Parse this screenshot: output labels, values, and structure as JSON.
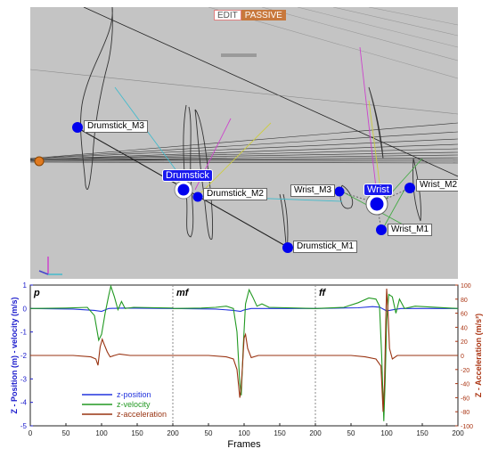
{
  "toolbar": {
    "edit_label": "EDIT",
    "passive_label": "PASSIVE"
  },
  "markers": {
    "drumstick_m3": "Drumstick_M3",
    "drumstick": "Drumstick",
    "drumstick_m2": "Drumstick_M2",
    "drumstick_m1": "Drumstick_M1",
    "wrist_m3": "Wrist_M3",
    "wrist": "Wrist",
    "wrist_m2": "Wrist_M2",
    "wrist_m1": "Wrist_M1"
  },
  "colors": {
    "viewport_bg": "#c4c4c4",
    "marker_blue": "#0000ee",
    "z_position": "#2233dd",
    "z_velocity": "#229922",
    "z_acceleration": "#993311",
    "axis_left": "#1a1acc",
    "axis_right": "#aa3311"
  },
  "chart_data": {
    "type": "line",
    "xlabel": "Frames",
    "ylabel_left": "Z - Position (m) - velocity (m/s)",
    "ylabel_right": "Z - Acceleration (m/s²)",
    "panels": [
      {
        "label": "p",
        "xlim": [
          0,
          200
        ]
      },
      {
        "label": "mf",
        "xlim": [
          0,
          200
        ]
      },
      {
        "label": "ff",
        "xlim": [
          0,
          200
        ]
      }
    ],
    "x_ticks": [
      0,
      50,
      100,
      150,
      200
    ],
    "ylim_left": [
      -5,
      1
    ],
    "y_ticks_left": [
      1,
      0,
      -1,
      -2,
      -3,
      -4,
      -5
    ],
    "ylim_right": [
      -100,
      100
    ],
    "y_ticks_right": [
      100,
      80,
      60,
      40,
      20,
      0,
      -20,
      -40,
      -60,
      -80,
      -100
    ],
    "legend": [
      "z-position",
      "z-velocity",
      "z-acceleration"
    ],
    "legend_position": "bottom-left",
    "series": [
      {
        "name": "z-position",
        "panels": [
          [
            [
              0,
              0
            ],
            [
              60,
              -0.02
            ],
            [
              90,
              -0.08
            ],
            [
              100,
              -0.12
            ],
            [
              110,
              0.0
            ],
            [
              130,
              0.02
            ],
            [
              200,
              0.0
            ]
          ],
          [
            [
              0,
              0
            ],
            [
              60,
              -0.02
            ],
            [
              85,
              -0.08
            ],
            [
              95,
              -0.12
            ],
            [
              100,
              -0.06
            ],
            [
              110,
              0.0
            ],
            [
              200,
              0.0
            ]
          ],
          [
            [
              0,
              0
            ],
            [
              60,
              0.03
            ],
            [
              80,
              0.08
            ],
            [
              90,
              0.06
            ],
            [
              100,
              -0.1
            ],
            [
              110,
              -0.05
            ],
            [
              120,
              0.0
            ],
            [
              200,
              0.0
            ]
          ]
        ]
      },
      {
        "name": "z-velocity",
        "panels": [
          [
            [
              0,
              0
            ],
            [
              50,
              0.02
            ],
            [
              80,
              0.05
            ],
            [
              90,
              -0.3
            ],
            [
              96,
              -1.35
            ],
            [
              100,
              -1.1
            ],
            [
              105,
              -0.2
            ],
            [
              110,
              0.55
            ],
            [
              113,
              0.95
            ],
            [
              118,
              0.5
            ],
            [
              123,
              -0.05
            ],
            [
              128,
              0.3
            ],
            [
              133,
              0.0
            ],
            [
              145,
              0.05
            ],
            [
              200,
              0.02
            ]
          ],
          [
            [
              0,
              0
            ],
            [
              40,
              0.02
            ],
            [
              60,
              0.05
            ],
            [
              75,
              0.1
            ],
            [
              85,
              0.0
            ],
            [
              90,
              -1.0
            ],
            [
              94,
              -3.2
            ],
            [
              96,
              -3.7
            ],
            [
              99,
              -1.5
            ],
            [
              102,
              0.2
            ],
            [
              107,
              0.8
            ],
            [
              112,
              0.5
            ],
            [
              118,
              0.1
            ],
            [
              125,
              0.2
            ],
            [
              135,
              0.05
            ],
            [
              200,
              0.0
            ]
          ],
          [
            [
              0,
              0
            ],
            [
              40,
              0.05
            ],
            [
              60,
              0.25
            ],
            [
              75,
              0.45
            ],
            [
              85,
              0.4
            ],
            [
              90,
              0.1
            ],
            [
              93,
              -2.0
            ],
            [
              96,
              -4.8
            ],
            [
              98,
              -3.0
            ],
            [
              100,
              -0.5
            ],
            [
              103,
              0.6
            ],
            [
              108,
              0.5
            ],
            [
              113,
              -0.2
            ],
            [
              118,
              0.4
            ],
            [
              125,
              0.0
            ],
            [
              140,
              0.1
            ],
            [
              200,
              0.0
            ]
          ]
        ]
      },
      {
        "name": "z-acceleration",
        "panels": [
          [
            [
              0,
              0
            ],
            [
              60,
              0
            ],
            [
              85,
              -2
            ],
            [
              92,
              -5
            ],
            [
              95,
              -14
            ],
            [
              98,
              12
            ],
            [
              101,
              23
            ],
            [
              104,
              15
            ],
            [
              108,
              5
            ],
            [
              112,
              -2
            ],
            [
              118,
              0
            ],
            [
              125,
              2
            ],
            [
              140,
              0
            ],
            [
              200,
              0
            ]
          ],
          [
            [
              0,
              0
            ],
            [
              50,
              0
            ],
            [
              75,
              -2
            ],
            [
              85,
              -5
            ],
            [
              90,
              -20
            ],
            [
              94,
              -60
            ],
            [
              96,
              -45
            ],
            [
              98,
              -10
            ],
            [
              100,
              25
            ],
            [
              102,
              30
            ],
            [
              105,
              10
            ],
            [
              110,
              -3
            ],
            [
              120,
              0
            ],
            [
              200,
              0
            ]
          ],
          [
            [
              0,
              0
            ],
            [
              50,
              0
            ],
            [
              70,
              -2
            ],
            [
              85,
              -5
            ],
            [
              92,
              -15
            ],
            [
              95,
              -80
            ],
            [
              97,
              -40
            ],
            [
              99,
              60
            ],
            [
              100,
              95
            ],
            [
              102,
              60
            ],
            [
              104,
              10
            ],
            [
              108,
              -5
            ],
            [
              115,
              0
            ],
            [
              200,
              0
            ]
          ]
        ]
      }
    ]
  }
}
